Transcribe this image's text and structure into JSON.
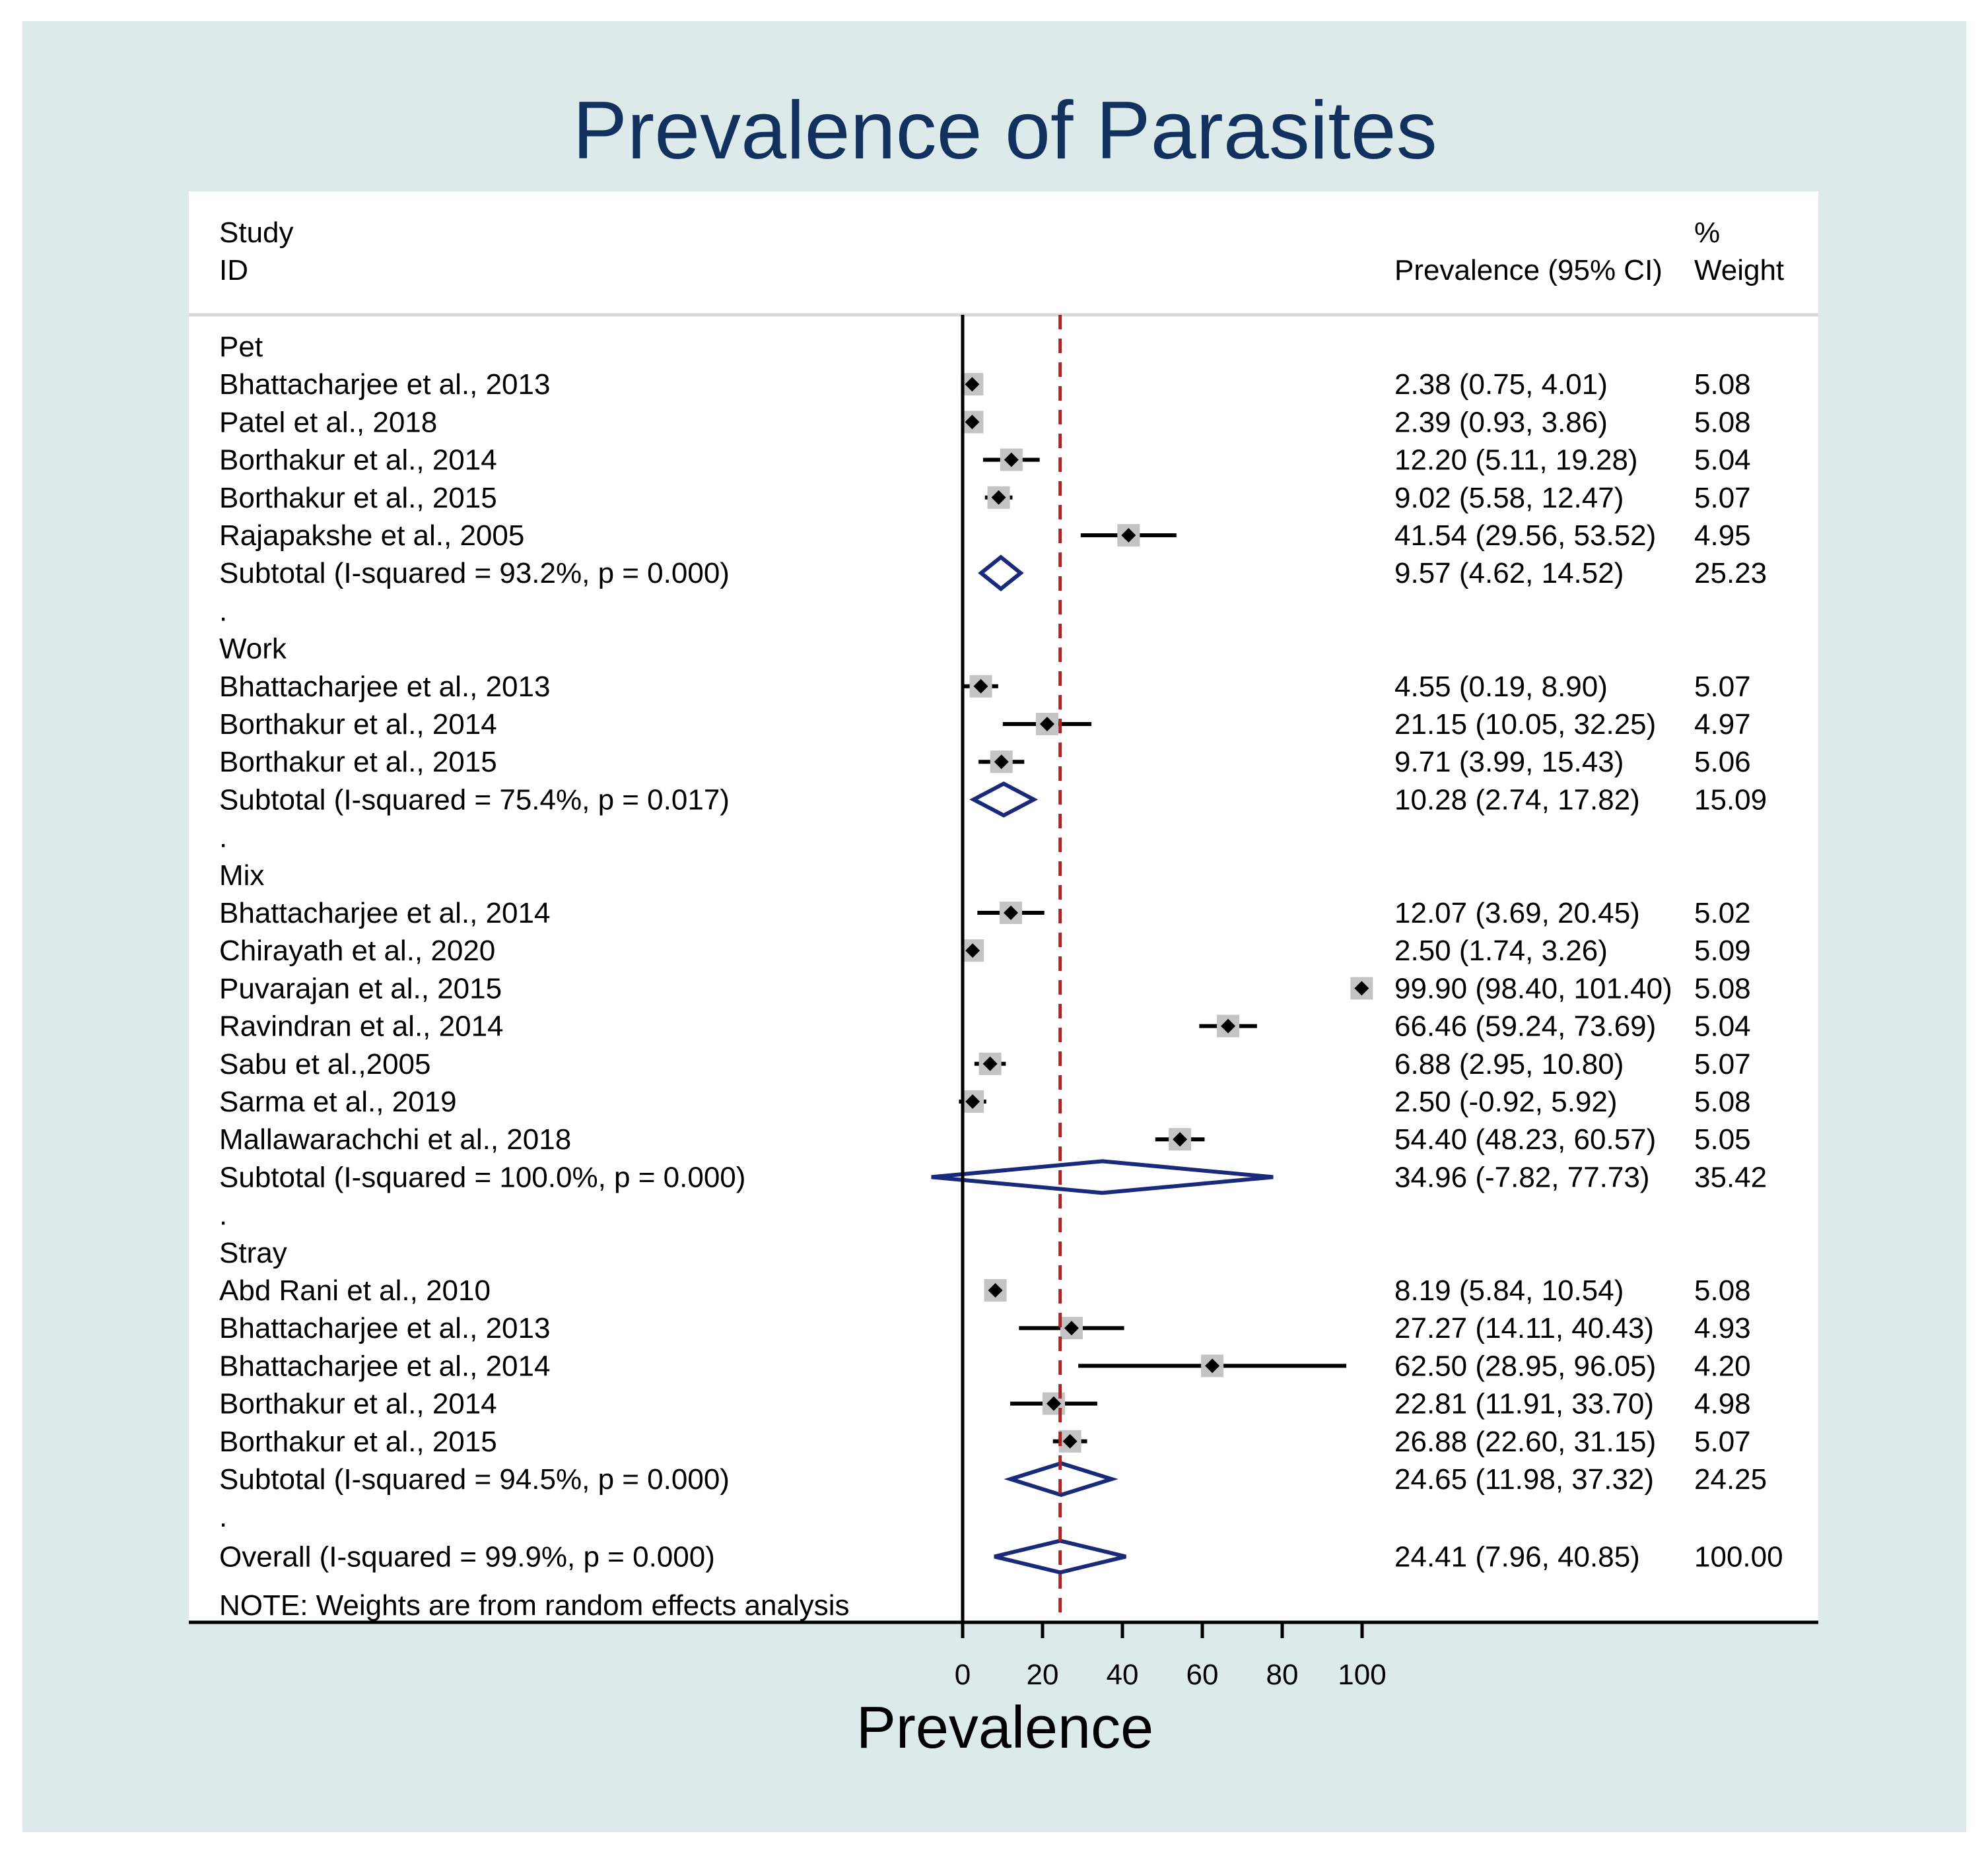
{
  "chart_data": {
    "type": "forest",
    "title": "Prevalence of Parasites",
    "xlabel": "Prevalence",
    "xlim": [
      0,
      100
    ],
    "xticks": [
      0,
      20,
      40,
      60,
      80,
      100
    ],
    "tick_labels": [
      "0",
      "20",
      "40",
      "60",
      "80",
      "100"
    ],
    "overall_line": 24.41,
    "headers": {
      "study_line1": "Study",
      "study_line2": "ID",
      "estimate": "Prevalence (95% CI)",
      "weight_line1": "%",
      "weight_line2": "Weight"
    },
    "rows": [
      {
        "kind": "group",
        "label": "Pet"
      },
      {
        "kind": "study",
        "label": "Bhattacharjee et al., 2013",
        "est": 2.38,
        "lo": 0.75,
        "hi": 4.01,
        "ci_text": "2.38 (0.75, 4.01)",
        "weight": "5.08"
      },
      {
        "kind": "study",
        "label": "Patel et al., 2018",
        "est": 2.39,
        "lo": 0.93,
        "hi": 3.86,
        "ci_text": "2.39 (0.93, 3.86)",
        "weight": "5.08"
      },
      {
        "kind": "study",
        "label": "Borthakur et al., 2014",
        "est": 12.2,
        "lo": 5.11,
        "hi": 19.28,
        "ci_text": "12.20 (5.11, 19.28)",
        "weight": "5.04"
      },
      {
        "kind": "study",
        "label": "Borthakur et al., 2015",
        "est": 9.02,
        "lo": 5.58,
        "hi": 12.47,
        "ci_text": "9.02 (5.58, 12.47)",
        "weight": "5.07"
      },
      {
        "kind": "study",
        "label": "Rajapakshe et al., 2005",
        "est": 41.54,
        "lo": 29.56,
        "hi": 53.52,
        "ci_text": "41.54 (29.56, 53.52)",
        "weight": "4.95"
      },
      {
        "kind": "subtotal",
        "label": "Subtotal  (I-squared = 93.2%, p = 0.000)",
        "est": 9.57,
        "lo": 4.62,
        "hi": 14.52,
        "ci_text": "9.57 (4.62, 14.52)",
        "weight": "25.23"
      },
      {
        "kind": "dot",
        "label": "."
      },
      {
        "kind": "group",
        "label": "Work"
      },
      {
        "kind": "study",
        "label": "Bhattacharjee et al., 2013",
        "est": 4.55,
        "lo": 0.19,
        "hi": 8.9,
        "ci_text": "4.55 (0.19, 8.90)",
        "weight": "5.07"
      },
      {
        "kind": "study",
        "label": "Borthakur et al., 2014",
        "est": 21.15,
        "lo": 10.05,
        "hi": 32.25,
        "ci_text": "21.15 (10.05, 32.25)",
        "weight": "4.97"
      },
      {
        "kind": "study",
        "label": "Borthakur et al., 2015",
        "est": 9.71,
        "lo": 3.99,
        "hi": 15.43,
        "ci_text": "9.71 (3.99, 15.43)",
        "weight": "5.06"
      },
      {
        "kind": "subtotal",
        "label": "Subtotal  (I-squared = 75.4%, p = 0.017)",
        "est": 10.28,
        "lo": 2.74,
        "hi": 17.82,
        "ci_text": "10.28 (2.74, 17.82)",
        "weight": "15.09"
      },
      {
        "kind": "dot",
        "label": "."
      },
      {
        "kind": "group",
        "label": "Mix"
      },
      {
        "kind": "study",
        "label": "Bhattacharjee et al., 2014",
        "est": 12.07,
        "lo": 3.69,
        "hi": 20.45,
        "ci_text": "12.07 (3.69, 20.45)",
        "weight": "5.02"
      },
      {
        "kind": "study",
        "label": "Chirayath et al., 2020",
        "est": 2.5,
        "lo": 1.74,
        "hi": 3.26,
        "ci_text": "2.50 (1.74, 3.26)",
        "weight": "5.09"
      },
      {
        "kind": "study",
        "label": "Puvarajan et al., 2015",
        "est": 99.9,
        "lo": 98.4,
        "hi": 101.4,
        "ci_text": "99.90 (98.40, 101.40)",
        "weight": "5.08"
      },
      {
        "kind": "study",
        "label": "Ravindran et al., 2014",
        "est": 66.46,
        "lo": 59.24,
        "hi": 73.69,
        "ci_text": "66.46 (59.24, 73.69)",
        "weight": "5.04"
      },
      {
        "kind": "study",
        "label": "Sabu et al.,2005",
        "est": 6.88,
        "lo": 2.95,
        "hi": 10.8,
        "ci_text": "6.88 (2.95, 10.80)",
        "weight": "5.07"
      },
      {
        "kind": "study",
        "label": "Sarma et al., 2019",
        "est": 2.5,
        "lo": -0.92,
        "hi": 5.92,
        "ci_text": "2.50 (-0.92, 5.92)",
        "weight": "5.08"
      },
      {
        "kind": "study",
        "label": "Mallawarachchi et al., 2018",
        "est": 54.4,
        "lo": 48.23,
        "hi": 60.57,
        "ci_text": "54.40 (48.23, 60.57)",
        "weight": "5.05"
      },
      {
        "kind": "subtotal",
        "label": "Subtotal  (I-squared = 100.0%, p = 0.000)",
        "est": 34.96,
        "lo": -7.82,
        "hi": 77.73,
        "ci_text": "34.96 (-7.82, 77.73)",
        "weight": "35.42"
      },
      {
        "kind": "dot",
        "label": "."
      },
      {
        "kind": "group",
        "label": "Stray"
      },
      {
        "kind": "study",
        "label": "Abd Rani et al., 2010",
        "est": 8.19,
        "lo": 5.84,
        "hi": 10.54,
        "ci_text": "8.19 (5.84, 10.54)",
        "weight": "5.08"
      },
      {
        "kind": "study",
        "label": "Bhattacharjee et al., 2013",
        "est": 27.27,
        "lo": 14.11,
        "hi": 40.43,
        "ci_text": "27.27 (14.11, 40.43)",
        "weight": "4.93"
      },
      {
        "kind": "study",
        "label": "Bhattacharjee et al., 2014",
        "est": 62.5,
        "lo": 28.95,
        "hi": 96.05,
        "ci_text": "62.50 (28.95, 96.05)",
        "weight": "4.20"
      },
      {
        "kind": "study",
        "label": "Borthakur et al., 2014",
        "est": 22.81,
        "lo": 11.91,
        "hi": 33.7,
        "ci_text": "22.81 (11.91, 33.70)",
        "weight": "4.98"
      },
      {
        "kind": "study",
        "label": "Borthakur et al., 2015",
        "est": 26.88,
        "lo": 22.6,
        "hi": 31.15,
        "ci_text": "26.88 (22.60, 31.15)",
        "weight": "5.07"
      },
      {
        "kind": "subtotal",
        "label": "Subtotal  (I-squared = 94.5%, p = 0.000)",
        "est": 24.65,
        "lo": 11.98,
        "hi": 37.32,
        "ci_text": "24.65 (11.98, 37.32)",
        "weight": "24.25"
      },
      {
        "kind": "dot",
        "label": "."
      },
      {
        "kind": "overall",
        "label": "Overall  (I-squared = 99.9%, p = 0.000)",
        "est": 24.41,
        "lo": 7.96,
        "hi": 40.85,
        "ci_text": "24.41 (7.96, 40.85)",
        "weight": "100.00"
      }
    ],
    "note": "NOTE: Weights are from random effects analysis"
  },
  "colors": {
    "background": "#dcebea",
    "panel": "#ffffff",
    "title": "#12315f",
    "diamond": "#1a2a7a",
    "ref_line": "#b22222",
    "box": "#c4c4c4",
    "ink": "#000000",
    "header_rule": "#d8d8d8"
  }
}
